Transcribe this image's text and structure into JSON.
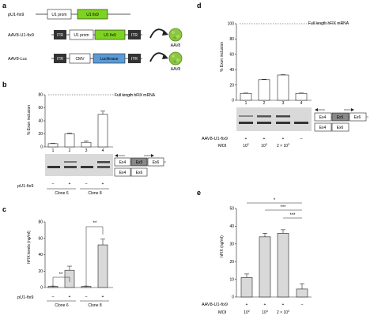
{
  "panel_a": {
    "label": "a",
    "constructs": [
      {
        "name": "pU1-fix9",
        "parts": [
          "U1 prom",
          "U1 fix9"
        ]
      },
      {
        "name": "AAV8-U1-fix9",
        "parts": [
          "ITR",
          "U1 prom",
          "U1 fix9",
          "ITR"
        ],
        "virus": "AAV8"
      },
      {
        "name": "AAV8-Luc",
        "parts": [
          "ITR",
          "CMV",
          "Luciferase",
          "ITR"
        ],
        "virus": "AAV8"
      }
    ]
  },
  "panel_b": {
    "label": "b",
    "ylabel": "% Exon inclusion",
    "ref_line_label": "Full length hFIX mRNA",
    "lane_numbers": [
      "1",
      "2",
      "3",
      "4"
    ],
    "treatment_label": "pU1-fix9",
    "treatment": [
      "–",
      "+",
      "–",
      "+"
    ],
    "groups": [
      "Clone 6",
      "Clone 8"
    ],
    "exon_labels_top": [
      "Ex4",
      "Ex5",
      "Ex6"
    ],
    "exon_labels_bottom": [
      "Ex4",
      "Ex6"
    ]
  },
  "panel_c": {
    "label": "c",
    "ylabel": "hFIX levels (ng/ml)",
    "significance": [
      "**",
      "**"
    ],
    "treatment_label": "pU1-fix9",
    "treatment": [
      "–",
      "+",
      "–",
      "+"
    ],
    "groups": [
      "Clone 6",
      "Clone 8"
    ]
  },
  "panel_d": {
    "label": "d",
    "ylabel": "% Exon inclusion",
    "ref_line_label": "Full length hFIX mRNA",
    "lane_numbers": [
      "1",
      "2",
      "3",
      "4"
    ],
    "treatment_label": "AAV8-U1-fix9",
    "treatment": [
      "+",
      "+",
      "+",
      "–"
    ],
    "moi_label": "MOI",
    "moi_base": [
      "10",
      "10",
      "2 × 10",
      ""
    ],
    "moi_exp": [
      "2",
      "3",
      "3",
      ""
    ],
    "exon_labels_top": [
      "Ex4",
      "Ex5",
      "Ex6"
    ],
    "exon_labels_bottom": [
      "Ex4",
      "Ex6"
    ]
  },
  "panel_e": {
    "label": "e",
    "ylabel": "hFIX (ng/ml)",
    "significance": [
      "*",
      "***",
      "***"
    ],
    "treatment_label": "AAV8-U1-fix9",
    "treatment": [
      "+",
      "+",
      "+",
      "–"
    ],
    "moi_label": "MOI",
    "moi_base": [
      "10",
      "10",
      "2 × 10",
      ""
    ],
    "moi_exp": [
      "2",
      "3",
      "3",
      ""
    ]
  },
  "chart_data": [
    {
      "panel": "b",
      "type": "bar",
      "categories": [
        "1",
        "2",
        "3",
        "4"
      ],
      "values": [
        5,
        20,
        7,
        50
      ],
      "errors": [
        0.5,
        1,
        2,
        5
      ],
      "ylabel": "% Exon inclusion",
      "ylim": [
        0,
        80
      ],
      "yticks": [
        0,
        20,
        40,
        60,
        80
      ],
      "reference_line": 80
    },
    {
      "panel": "c",
      "type": "bar",
      "categories": [
        "Clone 6 –",
        "Clone 6 +",
        "Clone 8 –",
        "Clone 8 +"
      ],
      "values": [
        1.5,
        21,
        1.5,
        52
      ],
      "errors": [
        0.3,
        5,
        0.3,
        7
      ],
      "ylabel": "hFIX levels (ng/ml)",
      "ylim": [
        0,
        80
      ],
      "yticks": [
        0,
        20,
        40,
        60,
        80
      ]
    },
    {
      "panel": "d",
      "type": "bar",
      "categories": [
        "1",
        "2",
        "3",
        "4"
      ],
      "values": [
        9,
        27,
        33,
        9
      ],
      "errors": [
        0.5,
        0.5,
        0.5,
        0.5
      ],
      "ylabel": "% Exon inclusion",
      "ylim": [
        0,
        100
      ],
      "yticks": [
        0,
        20,
        40,
        60,
        80,
        100
      ],
      "reference_line": 100
    },
    {
      "panel": "e",
      "type": "bar",
      "categories": [
        "10^2",
        "10^3",
        "2 × 10^3",
        "–"
      ],
      "values": [
        11,
        34,
        36,
        4.5
      ],
      "errors": [
        2,
        2,
        2,
        3
      ],
      "ylabel": "hFIX (ng/ml)",
      "ylim": [
        0,
        50
      ],
      "yticks": [
        0,
        10,
        20,
        30,
        40,
        50
      ]
    }
  ],
  "colors": {
    "u1fix9": "#7ed321",
    "luciferase": "#5b9bd5",
    "itr": "#333333",
    "bar_open": "#ffffff",
    "bar_gray": "#d9d9d9",
    "virus": "#8dc63f"
  }
}
